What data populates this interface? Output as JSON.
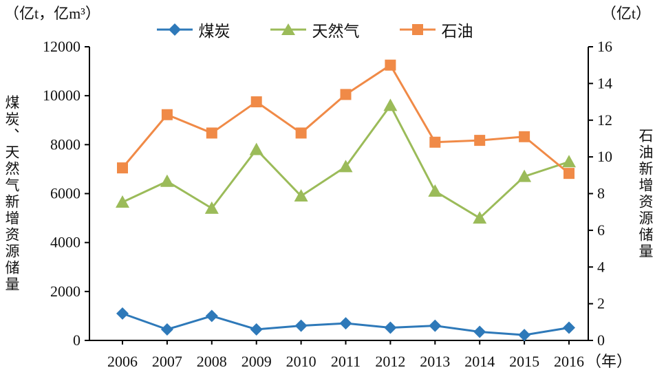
{
  "page": {
    "left_axis_unit": "（亿t，亿m³）",
    "right_axis_unit": "（亿t）",
    "x_axis_unit": "（年）",
    "left_axis_title": "煤炭、天然气新增资源储量",
    "right_axis_title": "石油新增资源储量"
  },
  "legend": {
    "items": [
      {
        "label": "煤炭",
        "marker": "diamond",
        "color": "#2E79B9"
      },
      {
        "label": "天然气",
        "marker": "triangle",
        "color": "#9BBB59"
      },
      {
        "label": "石油",
        "marker": "square",
        "color": "#F08A47"
      }
    ]
  },
  "chart_data": {
    "type": "line",
    "title": "",
    "categories": [
      "2006",
      "2007",
      "2008",
      "2009",
      "2010",
      "2011",
      "2012",
      "2013",
      "2014",
      "2015",
      "2016"
    ],
    "series": [
      {
        "name": "煤炭",
        "axis": "left",
        "marker": "diamond",
        "color": "#2E79B9",
        "values": [
          1100,
          450,
          1000,
          450,
          600,
          700,
          520,
          600,
          350,
          220,
          520
        ]
      },
      {
        "name": "天然气",
        "axis": "left",
        "marker": "triangle",
        "color": "#9BBB59",
        "values": [
          5650,
          6500,
          5400,
          7800,
          5900,
          7100,
          9600,
          6100,
          5000,
          6700,
          7300
        ]
      },
      {
        "name": "石油",
        "axis": "right",
        "marker": "square",
        "color": "#F08A47",
        "values": [
          9.4,
          12.3,
          11.3,
          13.0,
          11.3,
          13.4,
          15.0,
          10.8,
          10.9,
          11.1,
          9.1
        ]
      }
    ],
    "left_axis": {
      "title": "煤炭、天然气新增资源储量",
      "unit": "（亿t，亿m³）",
      "min": 0,
      "max": 12000,
      "ticks": [
        0,
        2000,
        4000,
        6000,
        8000,
        10000,
        12000
      ]
    },
    "right_axis": {
      "title": "石油新增资源储量",
      "unit": "（亿t）",
      "min": 0,
      "max": 16,
      "ticks": [
        0,
        2,
        4,
        6,
        8,
        10,
        12,
        14,
        16
      ]
    },
    "x_axis": {
      "label": "",
      "unit": "（年）"
    },
    "grid": false,
    "legend_position": "top"
  }
}
